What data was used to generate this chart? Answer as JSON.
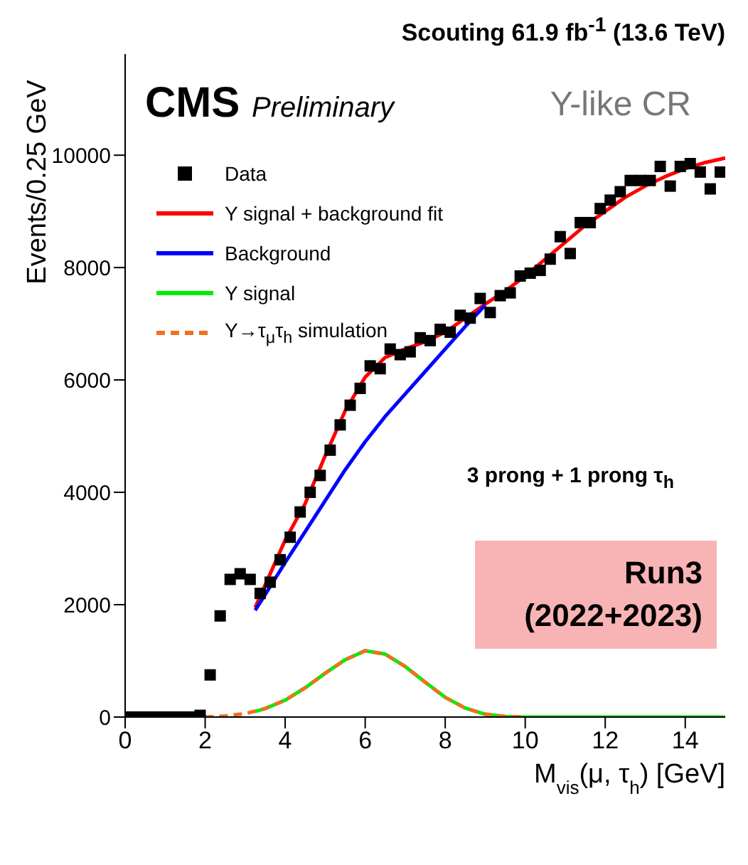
{
  "chart_data": {
    "type": "scatter",
    "title": "Scouting 61.9 fb$^{-1}$ (13.6 TeV)",
    "xlabel": "M$_{vis}$(μ, τ$_{h}$) [GeV]",
    "ylabel": "Events/0.25 GeV",
    "xlim": [
      0,
      15
    ],
    "ylim": [
      0,
      11800
    ],
    "xticks": [
      0,
      2,
      4,
      6,
      8,
      10,
      12,
      14
    ],
    "yticks": [
      0,
      2000,
      4000,
      6000,
      8000,
      10000
    ],
    "legend": "top left",
    "marker": "none",
    "annotations": [
      "CMS Preliminary",
      "Υ-like CR",
      "3 prong + 1 prong τ$_{h}$",
      "Run3 (2022+2023)"
    ],
    "series": [
      {
        "name": "Data",
        "marker": "square",
        "color": "#000000",
        "x": [
          0.125,
          0.375,
          0.625,
          0.875,
          1.125,
          1.375,
          1.625,
          1.875,
          2.125,
          2.375,
          2.625,
          2.875,
          3.125,
          3.375,
          3.625,
          3.875,
          4.125,
          4.375,
          4.625,
          4.875,
          5.125,
          5.375,
          5.625,
          5.875,
          6.125,
          6.375,
          6.625,
          6.875,
          7.125,
          7.375,
          7.625,
          7.875,
          8.125,
          8.375,
          8.625,
          8.875,
          9.125,
          9.375,
          9.625,
          9.875,
          10.125,
          10.375,
          10.625,
          10.875,
          11.125,
          11.375,
          11.625,
          11.875,
          12.125,
          12.375,
          12.625,
          12.875,
          13.125,
          13.375,
          13.625,
          13.875,
          14.125,
          14.375,
          14.625,
          14.875
        ],
        "values": [
          0,
          0,
          0,
          0,
          0,
          0,
          0,
          30,
          750,
          1800,
          2450,
          2550,
          2450,
          2200,
          2400,
          2800,
          3200,
          3650,
          4000,
          4300,
          4750,
          5200,
          5550,
          5850,
          6250,
          6200,
          6550,
          6450,
          6500,
          6750,
          6700,
          6900,
          6850,
          7150,
          7100,
          7450,
          7200,
          7500,
          7550,
          7850,
          7900,
          7950,
          8150,
          8550,
          8250,
          8800,
          8800,
          9050,
          9200,
          9350,
          9550,
          9550,
          9550,
          9800,
          9450,
          9800,
          9850,
          9700,
          9400,
          9700
        ]
      },
      {
        "name": "Υ signal + background fit",
        "type": "line",
        "color": "#ff0000",
        "x": [
          3.25,
          3.5,
          4,
          4.5,
          5,
          5.5,
          6,
          6.5,
          7,
          7.5,
          8,
          8.5,
          9,
          9.5,
          10,
          10.5,
          11,
          11.5,
          12,
          12.5,
          13,
          13.5,
          14,
          14.5,
          15
        ],
        "values": [
          1950,
          2350,
          3150,
          3800,
          4650,
          5450,
          6050,
          6400,
          6550,
          6680,
          6850,
          7100,
          7350,
          7580,
          7850,
          8150,
          8450,
          8750,
          9000,
          9250,
          9450,
          9620,
          9760,
          9870,
          9950
        ]
      },
      {
        "name": "Background",
        "type": "line",
        "color": "#0000ff",
        "x": [
          3.25,
          3.5,
          4,
          4.5,
          5,
          5.5,
          6,
          6.5,
          7,
          7.5,
          8,
          8.5,
          9
        ],
        "values": [
          1900,
          2180,
          2750,
          3300,
          3850,
          4400,
          4900,
          5350,
          5750,
          6150,
          6550,
          6950,
          7330
        ]
      },
      {
        "name": "Υ signal",
        "type": "line",
        "color": "#00ee00",
        "x": [
          3.25,
          3.5,
          4,
          4.5,
          5,
          5.5,
          6,
          6.5,
          7,
          7.5,
          8,
          8.5,
          9,
          9.5,
          10,
          15
        ],
        "values": [
          100,
          150,
          300,
          520,
          780,
          1020,
          1180,
          1120,
          900,
          620,
          350,
          160,
          50,
          10,
          0,
          0
        ]
      },
      {
        "name": "Υ→τ$_{μ}$τ$_{h}$ simulation",
        "type": "line",
        "color": "#f07020",
        "line_style": "dashed",
        "x": [
          2,
          2.5,
          3,
          3.5,
          4,
          4.5,
          5,
          5.5,
          6,
          6.5,
          7,
          7.5,
          8,
          8.5,
          9,
          9.5,
          10
        ],
        "values": [
          0,
          20,
          60,
          150,
          300,
          520,
          780,
          1020,
          1180,
          1120,
          900,
          620,
          350,
          160,
          50,
          10,
          0
        ]
      }
    ]
  }
}
